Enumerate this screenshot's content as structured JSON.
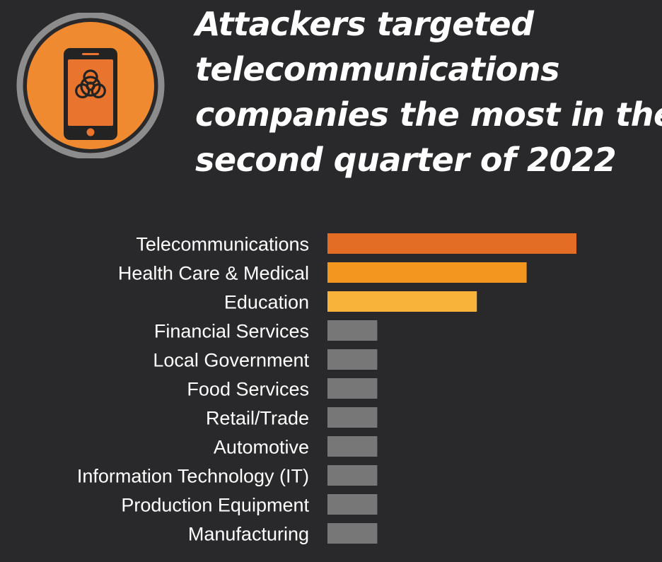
{
  "title_lines": [
    "Attackers targeted",
    "telecommunications",
    "companies the most in the",
    "second quarter of 2022"
  ],
  "icon": "mobile-phone-biohazard-icon",
  "colors": {
    "background": "#29292b",
    "icon_ring": "#8c8c8c",
    "icon_fill": "#f08a30",
    "phone_body": "#232323",
    "phone_screen": "#e8742e"
  },
  "chart_data": {
    "type": "bar",
    "orientation": "horizontal",
    "categories": [
      "Telecommunications",
      "Health Care & Medical",
      "Education",
      "Financial Services",
      "Local Government",
      "Food Services",
      "Retail/Trade",
      "Automotive",
      "Information Technology (IT)",
      "Production Equipment",
      "Manufacturing"
    ],
    "values": [
      5,
      4,
      3,
      1,
      1,
      1,
      1,
      1,
      1,
      1,
      1
    ],
    "colors": [
      "#e46d26",
      "#f29620",
      "#f8b43a",
      "#777777",
      "#777777",
      "#777777",
      "#777777",
      "#777777",
      "#777777",
      "#777777",
      "#777777"
    ],
    "xlim": [
      0,
      5
    ],
    "title": "",
    "xlabel": "",
    "ylabel": "",
    "grid": false
  }
}
